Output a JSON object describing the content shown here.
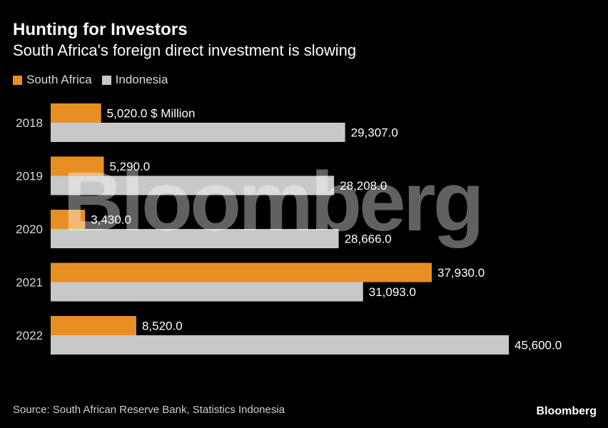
{
  "header": {
    "title": "Hunting for Investors",
    "subtitle": "South Africa's foreign direct investment is slowing"
  },
  "legend": {
    "items": [
      {
        "label": "South Africa",
        "color": "#e88f24"
      },
      {
        "label": "Indonesia",
        "color": "#c8c8c8"
      }
    ]
  },
  "chart_data": {
    "type": "bar",
    "orientation": "horizontal",
    "categories": [
      "2018",
      "2019",
      "2020",
      "2021",
      "2022"
    ],
    "series": [
      {
        "name": "South Africa",
        "color": "#e88f24",
        "values": [
          5020.0,
          5290.0,
          3430.0,
          37930.0,
          8520.0
        ]
      },
      {
        "name": "Indonesia",
        "color": "#c8c8c8",
        "values": [
          29307.0,
          28208.0,
          28666.0,
          31093.0,
          45600.0
        ]
      }
    ],
    "value_labels": [
      [
        "5,020.0 $ Million",
        "29,307.0"
      ],
      [
        "5,290.0",
        "28,208.0"
      ],
      [
        "3,430.0",
        "28,666.0"
      ],
      [
        "37,930.0",
        "31,093.0"
      ],
      [
        "8,520.0",
        "45,600.0"
      ]
    ],
    "title": "Hunting for Investors",
    "subtitle": "South Africa's foreign direct investment is slowing",
    "unit": "$ Million",
    "xlim": [
      0,
      45600
    ],
    "grid": false,
    "legend_position": "top-left"
  },
  "watermark": "Bloomberg",
  "footer": {
    "source": "Source: South African Reserve Bank, Statistics Indonesia",
    "logo": "Bloomberg"
  }
}
